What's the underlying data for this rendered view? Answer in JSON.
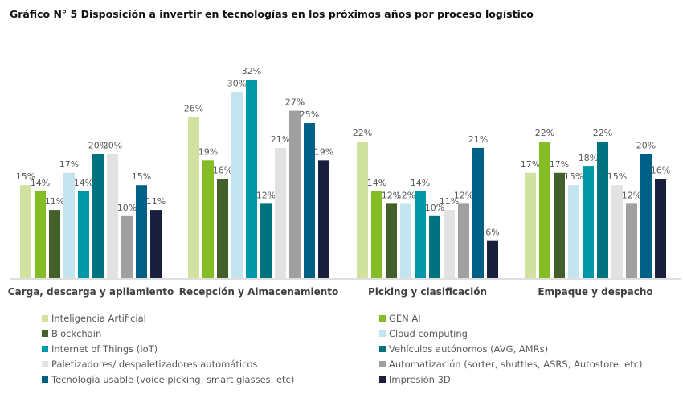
{
  "chart_data": {
    "type": "bar",
    "title": "Gráfico N° 5 Disposición a invertir en tecnologías en los próximos años por proceso logístico",
    "categories": [
      "Carga, descarga y apilamiento",
      "Recepción y Almacenamiento",
      "Picking y clasificación",
      "Empaque y despacho"
    ],
    "ylim": [
      0,
      32
    ],
    "grid": false,
    "legend_position": "bottom",
    "value_suffix": "%",
    "series": [
      {
        "name": "Inteligencia Artificial",
        "color": "#d0e1a0",
        "values": [
          15,
          26,
          22,
          17
        ]
      },
      {
        "name": "GEN AI",
        "color": "#86bc25",
        "values": [
          14,
          19,
          14,
          22
        ]
      },
      {
        "name": "Blockchain",
        "color": "#43602a",
        "values": [
          11,
          16,
          12,
          17
        ]
      },
      {
        "name": "Cloud computing",
        "color": "#c4e4f0",
        "values": [
          17,
          30,
          12,
          15
        ]
      },
      {
        "name": "Internet of Things (IoT)",
        "color": "#0097a9",
        "values": [
          14,
          32,
          14,
          18
        ]
      },
      {
        "name": "Vehículos autónomos (AVG, AMRs)",
        "color": "#00737f",
        "values": [
          20,
          12,
          10,
          22
        ]
      },
      {
        "name": "Paletizadores/ despaletizadores automáticos",
        "color": "#e2e2e2",
        "values": [
          20,
          21,
          11,
          15
        ]
      },
      {
        "name": "Automatización (sorter, shuttles, ASRS, Autostore, etc)",
        "color": "#a0a0a0",
        "values": [
          10,
          27,
          12,
          12
        ]
      },
      {
        "name": "Tecnología usable (voice picking, smart glasses, etc)",
        "color": "#005f85",
        "values": [
          15,
          25,
          21,
          20
        ]
      },
      {
        "name": "Impresión 3D",
        "color": "#1a1f3d",
        "values": [
          11,
          19,
          6,
          16
        ]
      }
    ]
  }
}
